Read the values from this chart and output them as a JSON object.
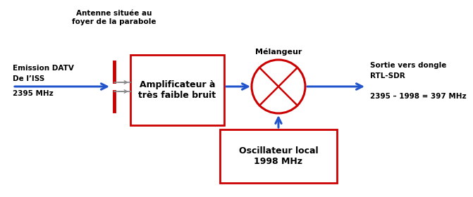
{
  "bg_color": "#ffffff",
  "title_antenna": "Antenne située au\nfoyer de la parabole",
  "label_emission_line1": "Emission DATV",
  "label_emission_line2": "De l’ISS",
  "label_emission_line3": "2395 MHz",
  "label_amp": "Amplificateur à\ntrès faible bruit",
  "label_melangeur": "Mélangeur",
  "label_sortie_line1": "Sortie vers dongle",
  "label_sortie_line2": "RTL-SDR",
  "label_sortie_line3": "2395 – 1998 = 397 MHz",
  "label_osc_line1": "Oscillateur local",
  "label_osc_line2": "1998 MHz",
  "red": "#cc0000",
  "blue": "#2255cc",
  "black": "#000000",
  "gray": "#888888"
}
